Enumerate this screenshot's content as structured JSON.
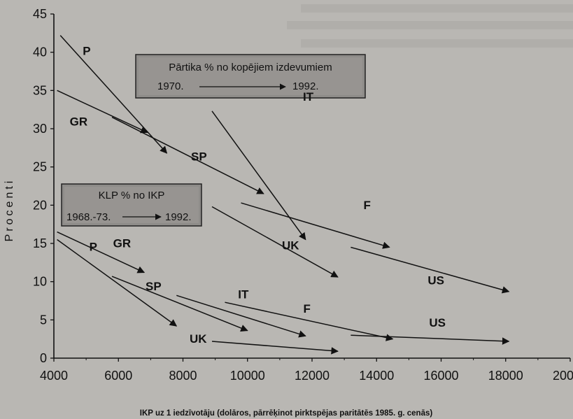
{
  "chart_data": {
    "type": "line",
    "ylabel": "Procenti",
    "xlabel": "IKP uz 1 iedzīvotāju (dolāros, pārrēķinot pirktspējas paritātēs 1985. g. cenās)",
    "xlim": [
      4000,
      20000
    ],
    "ylim": [
      0,
      45
    ],
    "x_ticks": [
      "4000",
      "6000",
      "8000",
      "10000",
      "12000",
      "14000",
      "16000",
      "18000",
      "20000"
    ],
    "y_ticks": [
      "0",
      "5",
      "10",
      "15",
      "20",
      "25",
      "30",
      "35",
      "40",
      "45"
    ],
    "grid": false,
    "annotations": [
      {
        "title": "Pārtika % no kopējiem izdevumiem",
        "from": "1970.",
        "to": "1992."
      },
      {
        "title": "KLP % no IKP",
        "from": "1968.-73.",
        "to": "1992."
      }
    ],
    "series": [
      {
        "group": "food",
        "name": "P",
        "points": [
          [
            4200,
            42.2
          ],
          [
            7500,
            26.8
          ]
        ]
      },
      {
        "group": "food",
        "name": "GR",
        "points": [
          [
            4100,
            35
          ],
          [
            6900,
            29.5
          ]
        ]
      },
      {
        "group": "food",
        "name": "SP",
        "points": [
          [
            5800,
            31.5
          ],
          [
            10500,
            21.5
          ]
        ]
      },
      {
        "group": "food",
        "name": "IT",
        "points": [
          [
            8900,
            32.3
          ],
          [
            11800,
            15.5
          ]
        ]
      },
      {
        "group": "food",
        "name": "F",
        "points": [
          [
            9800,
            20.3
          ],
          [
            14400,
            14.5
          ]
        ]
      },
      {
        "group": "food",
        "name": "UK",
        "points": [
          [
            8900,
            19.8
          ],
          [
            12800,
            10.6
          ]
        ]
      },
      {
        "group": "food",
        "name": "US",
        "points": [
          [
            13200,
            14.5
          ],
          [
            18100,
            8.7
          ]
        ]
      },
      {
        "group": "gov",
        "name": "GR",
        "points": [
          [
            4100,
            16.5
          ],
          [
            6800,
            11.2
          ]
        ]
      },
      {
        "group": "gov",
        "name": "P",
        "points": [
          [
            4100,
            15.5
          ],
          [
            7800,
            4.2
          ]
        ]
      },
      {
        "group": "gov",
        "name": "SP",
        "points": [
          [
            5800,
            10.7
          ],
          [
            10000,
            3.6
          ]
        ]
      },
      {
        "group": "gov",
        "name": "IT",
        "points": [
          [
            7800,
            8.2
          ],
          [
            11800,
            2.9
          ]
        ]
      },
      {
        "group": "gov",
        "name": "F",
        "points": [
          [
            9300,
            7.3
          ],
          [
            14500,
            2.5
          ]
        ]
      },
      {
        "group": "gov",
        "name": "UK",
        "points": [
          [
            8900,
            2.2
          ],
          [
            12800,
            0.9
          ]
        ]
      },
      {
        "group": "gov",
        "name": "US",
        "points": [
          [
            13200,
            3.0
          ],
          [
            18100,
            2.2
          ]
        ]
      }
    ]
  }
}
